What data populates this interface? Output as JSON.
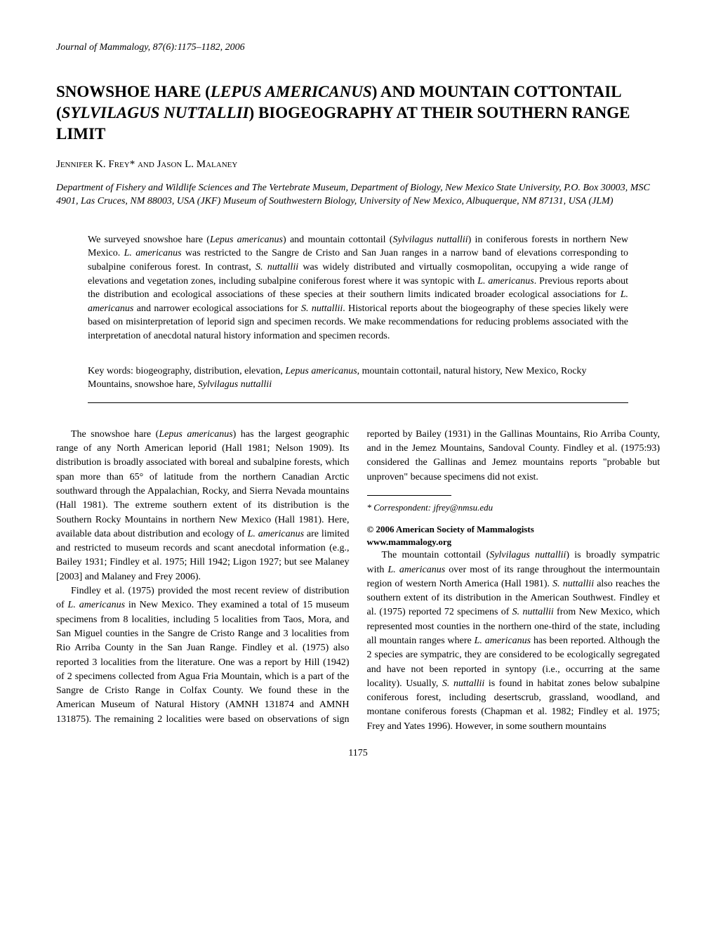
{
  "journal_header": "Journal of Mammalogy, 87(6):1175–1182, 2006",
  "title_line1": "SNOWSHOE HARE (",
  "title_species1": "LEPUS AMERICANUS",
  "title_line2": ") AND MOUNTAIN COTTONTAIL (",
  "title_species2": "SYLVILAGUS NUTTALLII",
  "title_line3": ") BIOGEOGRAPHY AT THEIR SOUTHERN RANGE LIMIT",
  "author1": "Jennifer K. Frey*",
  "author_and": " and ",
  "author2": "Jason L. Malaney",
  "affiliation": "Department of Fishery and Wildlife Sciences and The Vertebrate Museum, Department of Biology, New Mexico State University, P.O. Box 30003, MSC 4901, Las Cruces, NM 88003, USA (JKF) Museum of Southwestern Biology, University of New Mexico, Albuquerque, NM 87131, USA (JLM)",
  "abstract_p1a": "We surveyed snowshoe hare (",
  "abstract_sp1": "Lepus americanus",
  "abstract_p1b": ") and mountain cottontail (",
  "abstract_sp2": "Sylvilagus nuttallii",
  "abstract_p1c": ") in coniferous forests in northern New Mexico. ",
  "abstract_sp3": "L. americanus",
  "abstract_p1d": " was restricted to the Sangre de Cristo and San Juan ranges in a narrow band of elevations corresponding to subalpine coniferous forest. In contrast, ",
  "abstract_sp4": "S. nuttallii",
  "abstract_p1e": " was widely distributed and virtually cosmopolitan, occupying a wide range of elevations and vegetation zones, including subalpine coniferous forest where it was syntopic with ",
  "abstract_sp5": "L. americanus",
  "abstract_p1f": ". Previous reports about the distribution and ecological associations of these species at their southern limits indicated broader ecological associations for ",
  "abstract_sp6": "L. americanus",
  "abstract_p1g": " and narrower ecological associations for ",
  "abstract_sp7": "S. nuttallii",
  "abstract_p1h": ". Historical reports about the biogeography of these species likely were based on misinterpretation of leporid sign and specimen records. We make recommendations for reducing problems associated with the interpretation of anecdotal natural history information and specimen records.",
  "keywords_label": "Key words:  ",
  "keywords_p1": "biogeography, distribution, elevation, ",
  "keywords_sp1": "Lepus americanus",
  "keywords_p2": ", mountain cottontail, natural history, New Mexico, Rocky Mountains, snowshoe hare, ",
  "keywords_sp2": "Sylvilagus nuttallii",
  "body_p1a": "The snowshoe hare (",
  "body_p1_sp1": "Lepus americanus",
  "body_p1b": ") has the largest geographic range of any North American leporid (Hall 1981; Nelson 1909). Its distribution is broadly associated with boreal and subalpine forests, which span more than 65° of latitude from the northern Canadian Arctic southward through the Appalachian, Rocky, and Sierra Nevada mountains (Hall 1981). The extreme southern extent of its distribution is the Southern Rocky Mountains in northern New Mexico (Hall 1981). Here, available data about distribution and ecology of ",
  "body_p1_sp2": "L. americanus",
  "body_p1c": " are limited and restricted to museum records and scant anecdotal information (e.g., Bailey 1931; Findley et al. 1975; Hill 1942; Ligon 1927; but see Malaney [2003] and Malaney and Frey 2006).",
  "body_p2a": "Findley et al. (1975) provided the most recent review of distribution of ",
  "body_p2_sp1": "L. americanus",
  "body_p2b": " in New Mexico. They examined a total of 15 museum specimens from 8 localities, including 5 localities from Taos, Mora, and San Miguel counties in the Sangre de Cristo Range and 3 localities from Rio Arriba County in the San Juan Range. Findley et al. (1975) also reported 3 localities from the literature. One was a report by Hill (1942) of 2 specimens collected from Agua Fria Mountain, which is a part of the Sangre de Cristo Range in Colfax County. We found these in the American Museum of Natural History (AMNH 131874 and AMNH 131875). The remaining 2 localities were based on observations of sign reported by Bailey (1931) in the Gallinas Mountains, Rio Arriba County, and in the Jemez Mountains, Sandoval County. Findley et al. (1975:93) considered the Gallinas and Jemez mountains reports \"probable but unproven\" because specimens did not exist.",
  "body_p3a": "The mountain cottontail (",
  "body_p3_sp1": "Sylvilagus nuttallii",
  "body_p3b": ") is broadly sympatric with ",
  "body_p3_sp2": "L. americanus",
  "body_p3c": " over most of its range throughout the intermountain region of western North America (Hall 1981). ",
  "body_p3_sp3": "S. nuttallii",
  "body_p3d": " also reaches the southern extent of its distribution in the American Southwest. Findley et al. (1975) reported 72 specimens of ",
  "body_p3_sp4": "S. nuttallii",
  "body_p3e": " from New Mexico, which represented most counties in the northern one-third of the state, including all mountain ranges where ",
  "body_p3_sp5": "L. americanus",
  "body_p3f": " has been reported. Although the 2 species are sympatric, they are considered to be ecologically segregated and have not been reported in syntopy (i.e., occurring at the same locality). Usually, ",
  "body_p3_sp6": "S. nuttallii",
  "body_p3g": " is found in habitat zones below subalpine coniferous forest, including desertscrub, grassland, woodland, and montane coniferous forests (Chapman et al. 1982; Findley et al. 1975; Frey and Yates 1996). However, in some southern mountains",
  "correspondent": "* Correspondent: jfrey@nmsu.edu",
  "copyright_line1": "© 2006 American Society of Mammalogists",
  "copyright_line2": "www.mammalogy.org",
  "page_number": "1175"
}
